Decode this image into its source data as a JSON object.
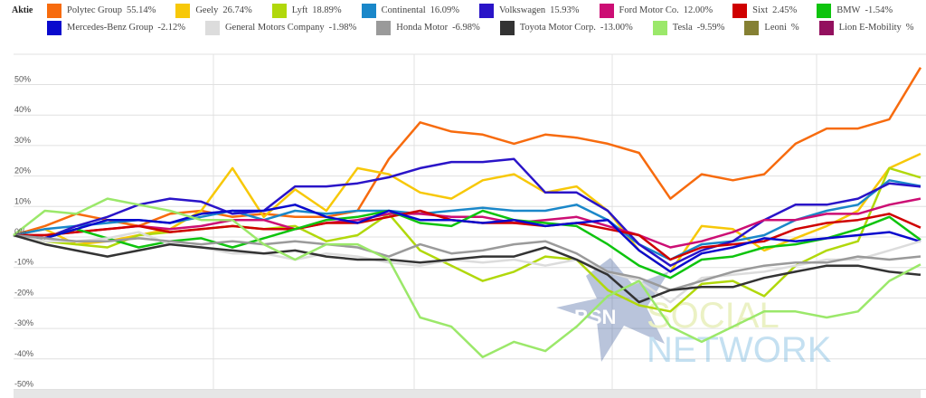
{
  "legend_title": "Aktie",
  "watermark": {
    "letters": "BSN",
    "line1": "SOCIAL",
    "line2": "NETWORK"
  },
  "chart_data": {
    "type": "line",
    "ylabel": "",
    "ylim": [
      -50,
      55
    ],
    "yticks": [
      "50%",
      "40%",
      "30%",
      "20%",
      "10%",
      "0%",
      "-10%",
      "-20%",
      "-30%",
      "-40%",
      "-50%"
    ],
    "ytick_values": [
      50,
      40,
      30,
      20,
      10,
      0,
      -10,
      -20,
      -30,
      -40,
      -50
    ],
    "grid": true,
    "legend_placement": "top",
    "series": [
      {
        "name": "Polytec Group",
        "label": "55.14%",
        "color": "#f76b0e",
        "values": [
          0,
          3,
          7,
          5,
          3,
          7,
          8,
          6,
          7,
          6,
          6,
          8,
          25,
          37,
          34,
          33,
          30,
          33,
          32,
          30,
          27,
          12,
          20,
          18,
          20,
          30,
          35,
          35,
          38,
          55
        ]
      },
      {
        "name": "Geely",
        "label": "26.74%",
        "color": "#f7c808",
        "values": [
          0,
          2,
          -3,
          -2,
          0,
          2,
          8,
          22,
          6,
          15,
          8,
          22,
          20,
          14,
          12,
          18,
          20,
          14,
          16,
          8,
          -5,
          -12,
          3,
          2,
          -5,
          -1,
          3,
          8,
          22,
          26.7
        ]
      },
      {
        "name": "Lyft",
        "label": "18.89%",
        "color": "#b1d80b",
        "values": [
          0,
          -2,
          -3,
          -4,
          0,
          1,
          2,
          3,
          2,
          3,
          -2,
          0,
          7,
          -5,
          -10,
          -15,
          -12,
          -7,
          -8,
          -18,
          -23,
          -25,
          -16,
          -15,
          -20,
          -10,
          -5,
          -2,
          22,
          18.9
        ]
      },
      {
        "name": "Continental",
        "label": "16.09%",
        "color": "#1a87c9",
        "values": [
          0,
          2,
          3,
          4,
          5,
          4,
          6,
          8,
          5,
          8,
          7,
          8,
          8,
          7,
          8,
          9,
          8,
          8,
          10,
          5,
          -3,
          -8,
          -3,
          -2,
          0,
          5,
          8,
          10,
          18,
          16.1
        ]
      },
      {
        "name": "Volkswagen",
        "label": "15.93%",
        "color": "#2a14c8",
        "values": [
          0,
          -1,
          3,
          6,
          10,
          12,
          11,
          7,
          8,
          16,
          16,
          17,
          19,
          22,
          24,
          24,
          25,
          14,
          14,
          8,
          -3,
          -10,
          -5,
          -2,
          5,
          10,
          10,
          12,
          17,
          15.9
        ]
      },
      {
        "name": "Ford Motor Co.",
        "label": "12.00%",
        "color": "#cc0e74",
        "values": [
          0,
          0,
          1,
          2,
          3,
          2,
          3,
          5,
          5,
          2,
          4,
          5,
          7,
          7,
          6,
          6,
          4,
          5,
          6,
          3,
          0,
          -4,
          -2,
          1,
          5,
          5,
          7,
          7,
          10,
          12
        ]
      },
      {
        "name": "Sixt",
        "label": "2.45%",
        "color": "#cf0000",
        "values": [
          0,
          0,
          1,
          2,
          3,
          1,
          2,
          3,
          2,
          2,
          4,
          4,
          6,
          8,
          5,
          4,
          4,
          3,
          4,
          2,
          0,
          -8,
          -4,
          -3,
          -2,
          2,
          4,
          5,
          7,
          2.45
        ]
      },
      {
        "name": "BMW",
        "label": "-1.54%",
        "color": "#0ec40e",
        "values": [
          0,
          -1,
          2,
          -1,
          -4,
          -2,
          -1,
          -4,
          -1,
          2,
          5,
          6,
          8,
          4,
          3,
          8,
          5,
          4,
          3,
          -3,
          -10,
          -14,
          -8,
          -7,
          -4,
          -3,
          -1,
          2,
          6,
          -1.54
        ]
      },
      {
        "name": "Mercedes-Benz Group",
        "label": "-2.12%",
        "color": "#0a0acd",
        "values": [
          0,
          -1,
          2,
          5,
          5,
          4,
          7,
          8,
          8,
          10,
          6,
          4,
          8,
          5,
          5,
          4,
          5,
          3,
          4,
          5,
          -5,
          -12,
          -6,
          -4,
          -1,
          -2,
          -1,
          0,
          1,
          -2.12
        ]
      },
      {
        "name": "General Motors Company",
        "label": "-1.98%",
        "color": "#dcdcdc",
        "values": [
          0,
          -2,
          -2,
          -1,
          1,
          -3,
          -4,
          -6,
          -6,
          -8,
          -6,
          -7,
          -9,
          -10,
          -8,
          -9,
          -8,
          -10,
          -8,
          -12,
          -15,
          -22,
          -14,
          -13,
          -12,
          -10,
          -8,
          -8,
          -5,
          -1.98
        ]
      },
      {
        "name": "Honda Motor",
        "label": "-6.98%",
        "color": "#9a9a9a",
        "values": [
          0,
          -1,
          -2,
          -2,
          -1,
          -2,
          -3,
          -2,
          -3,
          -2,
          -3,
          -4,
          -7,
          -3,
          -6,
          -5,
          -3,
          -2,
          -6,
          -12,
          -14,
          -18,
          -15,
          -12,
          -10,
          -9,
          -9,
          -7,
          -8,
          -6.98
        ]
      },
      {
        "name": "Toyota Motor Corp.",
        "label": "-13.00%",
        "color": "#333333",
        "values": [
          0,
          -3,
          -5,
          -7,
          -5,
          -3,
          -4,
          -5,
          -6,
          -5,
          -7,
          -8,
          -8,
          -9,
          -8,
          -7,
          -7,
          -4,
          -8,
          -13,
          -22,
          -18,
          -17,
          -17,
          -14,
          -12,
          -10,
          -10,
          -12,
          -13
        ]
      },
      {
        "name": "Tesla",
        "label": "-9.59%",
        "color": "#9be86a",
        "values": [
          0,
          8,
          7,
          12,
          10,
          8,
          5,
          5,
          -3,
          -8,
          -3,
          -3,
          -8,
          -27,
          -30,
          -40,
          -35,
          -38,
          -30,
          -20,
          -15,
          -30,
          -35,
          -30,
          -25,
          -25,
          -27,
          -25,
          -15,
          -9.59
        ]
      },
      {
        "name": "Leoni",
        "label": "%",
        "color": "#858033",
        "values": []
      },
      {
        "name": "Lion E-Mobility",
        "label": "%",
        "color": "#93105e",
        "values": []
      }
    ]
  }
}
